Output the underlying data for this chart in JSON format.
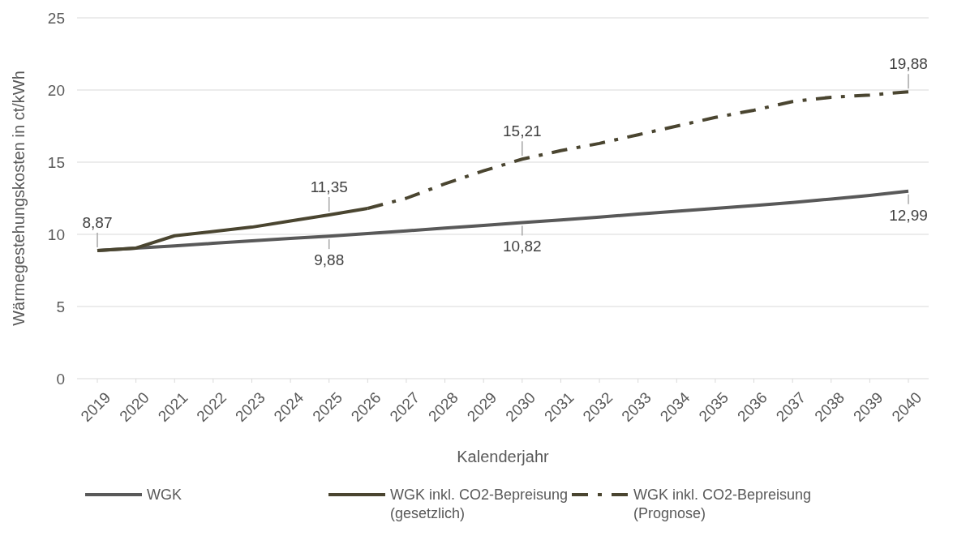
{
  "chart_data": {
    "type": "line",
    "xlabel": "Kalenderjahr",
    "ylabel": "Wärmegestehungskosten in ct/kWh",
    "categories": [
      "2019",
      "2020",
      "2021",
      "2022",
      "2023",
      "2024",
      "2025",
      "2026",
      "2027",
      "2028",
      "2029",
      "2030",
      "2031",
      "2032",
      "2033",
      "2034",
      "2035",
      "2036",
      "2037",
      "2038",
      "2039",
      "2040"
    ],
    "series": [
      {
        "name": "WGK",
        "color": "#595959",
        "line_style": "solid",
        "values": [
          8.87,
          9.05,
          9.2,
          9.38,
          9.55,
          9.72,
          9.88,
          10.06,
          10.24,
          10.43,
          10.62,
          10.82,
          11.0,
          11.2,
          11.4,
          11.6,
          11.8,
          12.0,
          12.2,
          12.45,
          12.7,
          12.99
        ]
      },
      {
        "name": "WGK inkl. CO2-Bepreisung (gesetzlich)",
        "color": "#4a4530",
        "line_style": "solid",
        "values": [
          8.87,
          9.05,
          9.9,
          10.2,
          10.5,
          10.93,
          11.35,
          11.8,
          null,
          null,
          null,
          null,
          null,
          null,
          null,
          null,
          null,
          null,
          null,
          null,
          null,
          null
        ]
      },
      {
        "name": "WGK inkl. CO2-Bepreisung (Prognose)",
        "color": "#4a4530",
        "line_style": "dashed",
        "values": [
          null,
          null,
          null,
          null,
          null,
          null,
          null,
          11.8,
          12.5,
          13.5,
          14.4,
          15.21,
          15.8,
          16.3,
          16.9,
          17.5,
          18.1,
          18.6,
          19.2,
          19.5,
          19.65,
          19.88
        ]
      }
    ],
    "annotations": [
      {
        "text": "8,87",
        "x": "2019",
        "y": 8.87
      },
      {
        "text": "9,88",
        "x": "2025",
        "y": 9.88
      },
      {
        "text": "10,82",
        "x": "2030",
        "y": 10.82
      },
      {
        "text": "11,35",
        "x": "2025",
        "y": 11.35
      },
      {
        "text": "15,21",
        "x": "2030",
        "y": 15.21
      },
      {
        "text": "19,88",
        "x": "2040",
        "y": 19.88
      },
      {
        "text": "12,99",
        "x": "2040",
        "y": 12.99
      }
    ],
    "ylim": [
      0,
      25
    ],
    "yticks": [
      0,
      5,
      10,
      15,
      20,
      25
    ],
    "grid": "y",
    "legend": "bottom"
  }
}
